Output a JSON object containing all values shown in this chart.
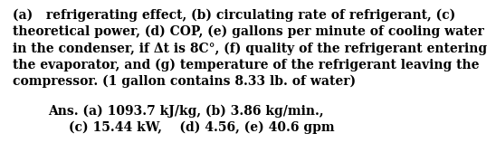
{
  "background_color": "#ffffff",
  "text_color": "#000000",
  "paragraph_lines": [
    "(a)   refrigerating effect, (b) circulating rate of refrigerant, (c)",
    "theoretical power, (d) COP, (e) gallons per minute of cooling water",
    "in the condenser, if Δt is 8C°, (f) quality of the refrigerant entering",
    "the evaporator, and (g) temperature of the refrigerant leaving the",
    "compressor. (1 gallon contains 8.33 lb. of water)"
  ],
  "ans_line1": "Ans. (a) 1093.7 kJ/kg, (b) 3.86 kg/min.,",
  "ans_line2": "(c) 15.44 kW,    (d) 4.56, (e) 40.6 gpm",
  "para_fontsize": 10.0,
  "ans_fontsize": 10.0,
  "figwidth": 5.48,
  "figheight": 1.79,
  "dpi": 100
}
